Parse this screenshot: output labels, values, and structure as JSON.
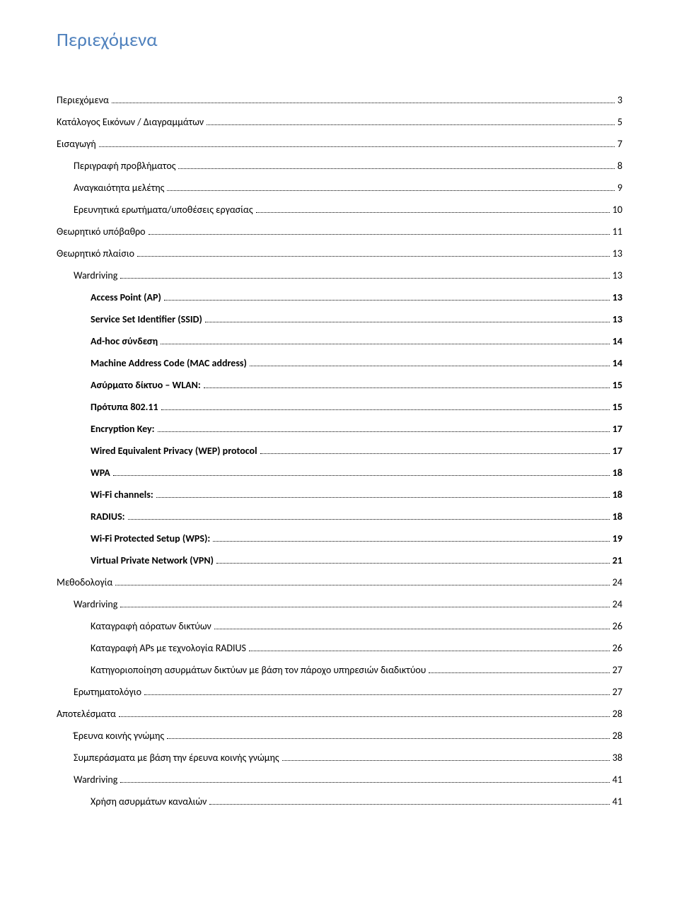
{
  "title": "Περιεχόμενα",
  "entries": [
    {
      "label": "Περιεχόμενα",
      "page": "3",
      "level": 0,
      "bold": false
    },
    {
      "label": "Κατάλογος Εικόνων / Διαγραμμάτων",
      "page": "5",
      "level": 0,
      "bold": false
    },
    {
      "label": "Εισαγωγή",
      "page": "7",
      "level": 0,
      "bold": false
    },
    {
      "label": "Περιγραφή προβλήματος",
      "page": "8",
      "level": 1,
      "bold": false
    },
    {
      "label": "Αναγκαιότητα μελέτης",
      "page": "9",
      "level": 1,
      "bold": false
    },
    {
      "label": "Ερευνητικά ερωτήματα/υποθέσεις εργασίας",
      "page": "10",
      "level": 1,
      "bold": false
    },
    {
      "label": "Θεωρητικό υπόβαθρο",
      "page": "11",
      "level": 0,
      "bold": false
    },
    {
      "label": "Θεωρητικό πλαίσιο",
      "page": "13",
      "level": 0,
      "bold": false
    },
    {
      "label": "Wardriving",
      "page": "13",
      "level": 1,
      "bold": false
    },
    {
      "label": "Access Point (AP)",
      "page": "13",
      "level": 2,
      "bold": true
    },
    {
      "label": "Service Set Identifier (SSID)",
      "page": "13",
      "level": 2,
      "bold": true
    },
    {
      "label": "Ad-hoc σύνδεση",
      "page": "14",
      "level": 2,
      "bold": true
    },
    {
      "label": "Machine Address Code (MAC address)",
      "page": "14",
      "level": 2,
      "bold": true
    },
    {
      "label": "Ασύρματο δίκτυο – WLAN:",
      "page": "15",
      "level": 2,
      "bold": true
    },
    {
      "label": "Πρότυπα 802.11",
      "page": "15",
      "level": 2,
      "bold": true
    },
    {
      "label": "Encryption Key:",
      "page": "17",
      "level": 2,
      "bold": true
    },
    {
      "label": "Wired Equivalent Privacy (WEP) protocol",
      "page": "17",
      "level": 2,
      "bold": true
    },
    {
      "label": "WPA",
      "page": "18",
      "level": 2,
      "bold": true
    },
    {
      "label": "Wi-Fi channels:",
      "page": "18",
      "level": 2,
      "bold": true
    },
    {
      "label": "RADIUS:",
      "page": "18",
      "level": 2,
      "bold": true
    },
    {
      "label": "Wi-Fi Protected Setup (WPS):",
      "page": "19",
      "level": 2,
      "bold": true
    },
    {
      "label": "Virtual Private Network (VPN)",
      "page": "21",
      "level": 2,
      "bold": true
    },
    {
      "label": "Μεθοδολογία",
      "page": "24",
      "level": 0,
      "bold": false
    },
    {
      "label": "Wardriving",
      "page": "24",
      "level": 1,
      "bold": false
    },
    {
      "label": "Καταγραφή αόρατων δικτύων",
      "page": "26",
      "level": 2,
      "bold": false
    },
    {
      "label": "Καταγραφή APs με τεχνολογία RADIUS",
      "page": "26",
      "level": 2,
      "bold": false
    },
    {
      "label": "Κατηγοριοποίηση ασυρμάτων δικτύων με βάση τον πάροχο υπηρεσιών διαδικτύου",
      "page": "27",
      "level": 2,
      "bold": false
    },
    {
      "label": "Ερωτηματολόγιο",
      "page": "27",
      "level": 1,
      "bold": false
    },
    {
      "label": "Αποτελέσματα",
      "page": "28",
      "level": 0,
      "bold": false
    },
    {
      "label": "Έρευνα κοινής γνώμης",
      "page": "28",
      "level": 1,
      "bold": false
    },
    {
      "label": "Συμπεράσματα με βάση την έρευνα κοινής γνώμης",
      "page": "38",
      "level": 1,
      "bold": false
    },
    {
      "label": "Wardriving",
      "page": "41",
      "level": 1,
      "bold": false
    },
    {
      "label": "Χρήση ασυρμάτων καναλιών",
      "page": "41",
      "level": 2,
      "bold": false
    }
  ]
}
